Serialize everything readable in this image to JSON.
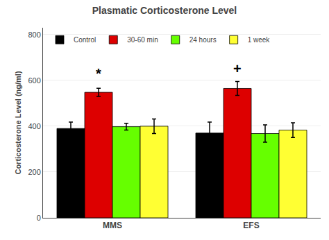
{
  "chart_data": {
    "type": "bar",
    "title": "Plasmatic Corticosterone Level",
    "ylabel": "Corticosterone Level (ng/ml)",
    "categories": [
      "MMS",
      "EFS"
    ],
    "series": [
      {
        "name": "Control",
        "color": "#000000",
        "values": [
          390,
          370
        ],
        "errors": [
          28,
          48
        ]
      },
      {
        "name": "30-60 min",
        "color": "#dd0000",
        "values": [
          548,
          565
        ],
        "errors": [
          18,
          30
        ]
      },
      {
        "name": "24 hours",
        "color": "#66ff00",
        "values": [
          398,
          368
        ],
        "errors": [
          15,
          38
        ]
      },
      {
        "name": "1 week",
        "color": "#ffff33",
        "values": [
          400,
          383
        ],
        "errors": [
          32,
          32
        ]
      }
    ],
    "annotations": [
      {
        "text": "*",
        "category": "MMS",
        "series": "30-60 min",
        "y": 590
      },
      {
        "text": "+",
        "category": "EFS",
        "series": "30-60 min",
        "y": 612
      }
    ],
    "ylim": [
      0,
      830
    ],
    "yticks": [
      0,
      200,
      400,
      600,
      800
    ],
    "grid": true,
    "legend": "upper left"
  }
}
